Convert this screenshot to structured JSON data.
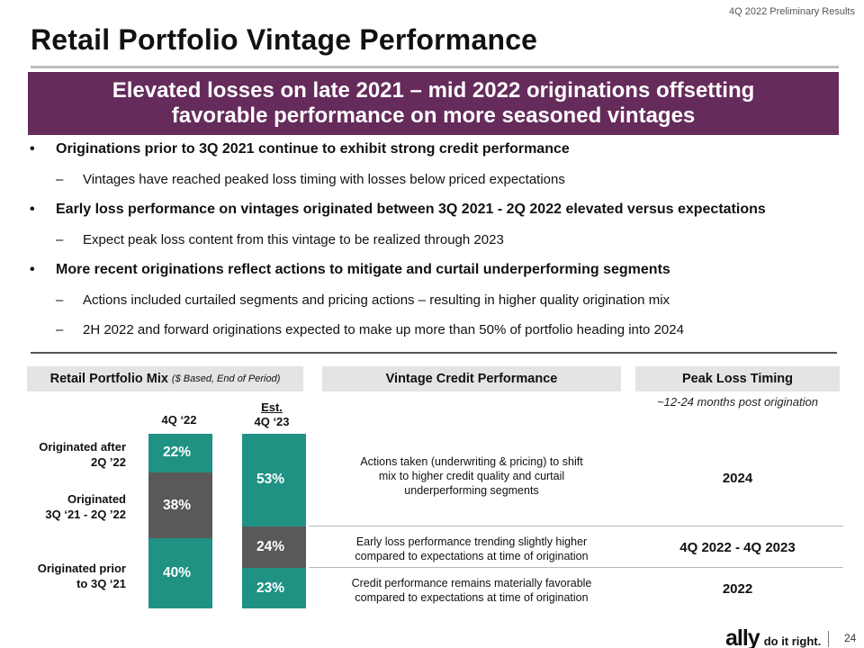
{
  "header": {
    "tag": "4Q 2022 Preliminary Results"
  },
  "title": "Retail Portfolio Vintage Performance",
  "banner": {
    "line1": "Elevated losses on late 2021 – mid 2022 originations offsetting",
    "line2": "favorable performance on more seasoned vintages"
  },
  "bullets": [
    {
      "level": 1,
      "text": "Originations prior to 3Q 2021 continue to exhibit strong credit performance"
    },
    {
      "level": 2,
      "text": "Vintages have reached peaked loss timing with losses below priced expectations"
    },
    {
      "level": 1,
      "text": "Early loss performance on vintages originated between 3Q 2021 - 2Q 2022 elevated versus expectations"
    },
    {
      "level": 2,
      "text": "Expect peak loss content from this vintage to be realized through 2023"
    },
    {
      "level": 1,
      "text": "More recent originations reflect actions to mitigate and curtail underperforming segments"
    },
    {
      "level": 2,
      "text": "Actions included curtailed segments and pricing actions – resulting in higher quality origination mix"
    },
    {
      "level": 2,
      "text": "2H 2022 and forward originations expected to make up more than 50% of portfolio heading into 2024"
    }
  ],
  "bullet_marks": {
    "level1": "•",
    "level2": "–"
  },
  "sections": {
    "mix_title": "Retail Portfolio Mix",
    "mix_subtitle": "($ Based, End of Period)",
    "vintage_title": "Vintage Credit Performance",
    "peak_title": "Peak Loss Timing",
    "peak_note": "~12-24 months post origination"
  },
  "columns": {
    "col1": "4Q ‘22",
    "col2_line1": "Est.",
    "col2_line2": "4Q ‘23"
  },
  "row_labels": {
    "after_line1": "Originated after",
    "after_line2": "2Q ’22",
    "between_line1": "Originated",
    "between_line2": "3Q ‘21 - 2Q ’22",
    "prior_line1": "Originated prior",
    "prior_line2": "to 3Q ‘21"
  },
  "chart_data": {
    "type": "bar",
    "stacked": true,
    "title": "Retail Portfolio Mix",
    "subtitle": "($ Based, End of Period)",
    "categories": [
      "4Q ‘22",
      "Est. 4Q ‘23"
    ],
    "series": [
      {
        "name": "Originated prior to 3Q ‘21",
        "values": [
          40,
          23
        ],
        "labels": [
          "40%",
          "23%"
        ],
        "color": "#1f9284"
      },
      {
        "name": "Originated 3Q ‘21 - 2Q ’22",
        "values": [
          38,
          24
        ],
        "labels": [
          "38%",
          "24%"
        ],
        "color": "#595959"
      },
      {
        "name": "Originated after 2Q ’22",
        "values": [
          22,
          53
        ],
        "labels": [
          "22%",
          "53%"
        ],
        "color": "#1f9284"
      }
    ],
    "unit": "%"
  },
  "vintage_rows": [
    {
      "desc_line1": "Actions taken (underwriting & pricing) to shift",
      "desc_line2": "mix to higher credit quality and curtail",
      "desc_line3": "underperforming segments",
      "peak": "2024"
    },
    {
      "desc_line1": "Early loss performance trending slightly higher",
      "desc_line2": "compared to expectations at time of origination",
      "peak": "4Q 2022 - 4Q 2023"
    },
    {
      "desc_line1": "Credit performance remains materially favorable",
      "desc_line2": "compared to expectations at time of origination",
      "peak": "2022"
    }
  ],
  "footer": {
    "logo": "ally",
    "tagline": "do it right.",
    "page_number": "24"
  },
  "colors": {
    "banner": "#652b5b",
    "teal": "#1f9284",
    "gray": "#595959",
    "pill": "#e4e4e4"
  }
}
